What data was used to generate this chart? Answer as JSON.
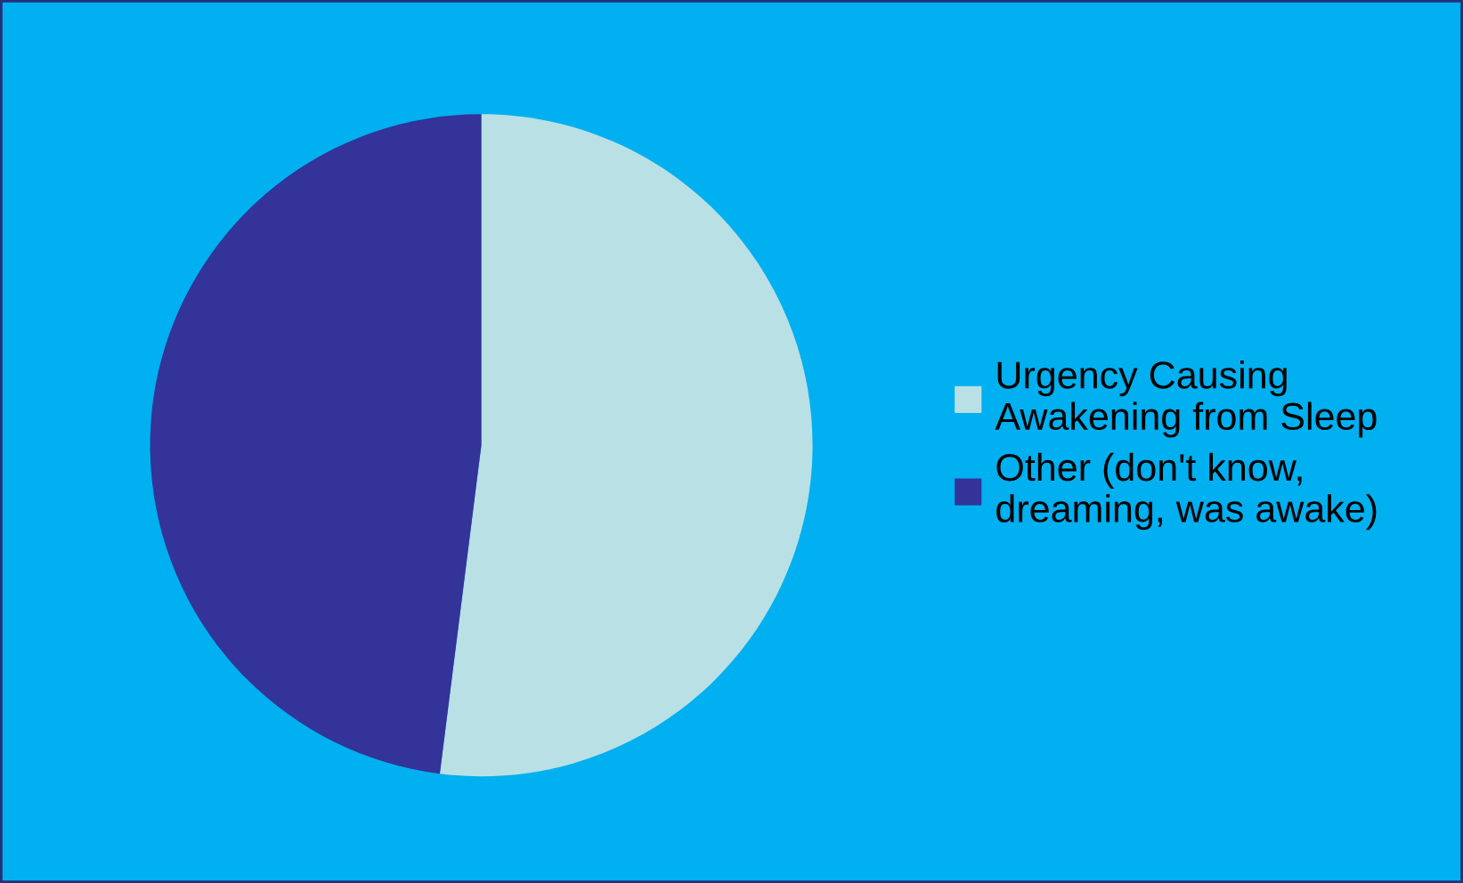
{
  "chart_data": {
    "type": "pie",
    "categories": [
      "Urgency Causing\nAwakening from Sleep",
      "Other (don't know,\ndreaming, was awake)"
    ],
    "values": [
      52,
      48
    ],
    "colors": [
      "#b9e0e4",
      "#333399"
    ],
    "legend": "right"
  }
}
